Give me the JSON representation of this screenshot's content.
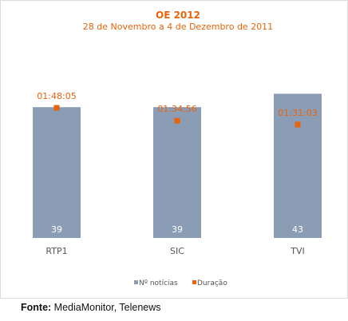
{
  "chart_data": {
    "type": "bar",
    "title": "OE 2012",
    "subtitle": "28 de Novembro a 4 de Dezembro de 2011",
    "categories": [
      "RTP1",
      "SIC",
      "TVI"
    ],
    "series": [
      {
        "name": "Nº notícias",
        "type": "bar",
        "values": [
          39,
          39,
          43
        ],
        "color": "#8a9db5"
      },
      {
        "name": "Duração",
        "type": "scatter",
        "values": [
          "01:48:05",
          "01:34:56",
          "01:31:03"
        ],
        "color": "#e8630a"
      }
    ],
    "legend_position": "bottom",
    "grid": false
  },
  "colors": {
    "title": "#e8630a",
    "axis_labels": "#555555"
  },
  "footer": {
    "label": "Fonte:",
    "text": "MediaMonitor, Telenews"
  }
}
